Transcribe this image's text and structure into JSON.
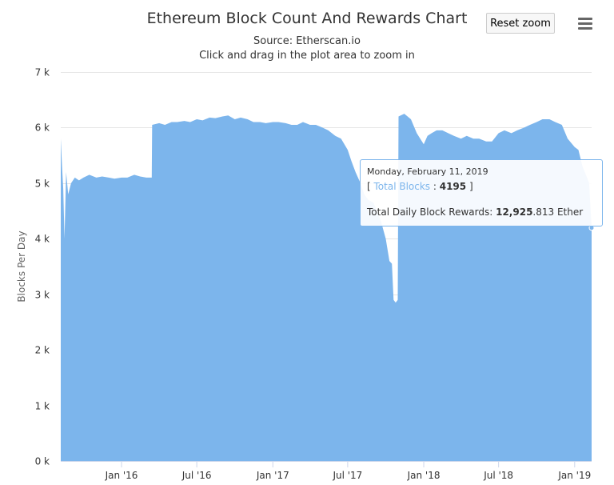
{
  "header": {
    "title": "Ethereum Block Count And Rewards Chart",
    "subtitle": "Source: Etherscan.io",
    "instruction": "Click and drag in the plot area to zoom in",
    "reset_zoom_label": "Reset zoom",
    "menu_icon": "hamburger-menu-icon"
  },
  "colors": {
    "series": "#7cb5ec",
    "gridline": "#e6e6e6",
    "axis_text": "#333333"
  },
  "chart_data": {
    "type": "area",
    "title": "Ethereum Block Count And Rewards Chart",
    "subtitle": "Source: Etherscan.io",
    "xlabel": "",
    "ylabel": "Blocks Per Day",
    "ylim": [
      0,
      7000
    ],
    "xlim": [
      "2015-08-07",
      "2019-02-11"
    ],
    "yticks": [
      {
        "value": 0,
        "label": "0 k"
      },
      {
        "value": 1000,
        "label": "1 k"
      },
      {
        "value": 2000,
        "label": "2 k"
      },
      {
        "value": 3000,
        "label": "3 k"
      },
      {
        "value": 4000,
        "label": "4 k"
      },
      {
        "value": 5000,
        "label": "5 k"
      },
      {
        "value": 6000,
        "label": "6 k"
      },
      {
        "value": 7000,
        "label": "7 k"
      }
    ],
    "xticks": [
      {
        "value": "2016-01-01",
        "label": "Jan '16"
      },
      {
        "value": "2016-07-01",
        "label": "Jul '16"
      },
      {
        "value": "2017-01-01",
        "label": "Jan '17"
      },
      {
        "value": "2017-07-01",
        "label": "Jul '17"
      },
      {
        "value": "2018-01-01",
        "label": "Jan '18"
      },
      {
        "value": "2018-07-01",
        "label": "Jul '18"
      },
      {
        "value": "2019-01-01",
        "label": "Jan '19"
      }
    ],
    "grid": true,
    "legend": false,
    "series": [
      {
        "x": [
          "2015-08-07",
          "2015-08-10",
          "2015-08-13",
          "2015-08-16",
          "2015-08-20",
          "2015-08-25",
          "2015-09-01",
          "2015-09-10",
          "2015-09-20",
          "2015-10-01",
          "2015-10-15",
          "2015-11-01",
          "2015-11-15",
          "2015-12-01",
          "2015-12-15",
          "2016-01-01",
          "2016-01-15",
          "2016-02-01",
          "2016-02-15",
          "2016-03-01",
          "2016-03-14",
          "2016-03-15",
          "2016-04-01",
          "2016-04-15",
          "2016-05-01",
          "2016-05-15",
          "2016-06-01",
          "2016-06-15",
          "2016-07-01",
          "2016-07-15",
          "2016-08-01",
          "2016-08-15",
          "2016-09-01",
          "2016-09-15",
          "2016-10-01",
          "2016-10-15",
          "2016-11-01",
          "2016-11-15",
          "2016-12-01",
          "2016-12-15",
          "2017-01-01",
          "2017-01-15",
          "2017-02-01",
          "2017-02-15",
          "2017-03-01",
          "2017-03-15",
          "2017-04-01",
          "2017-04-15",
          "2017-05-01",
          "2017-05-15",
          "2017-06-01",
          "2017-06-15",
          "2017-07-01",
          "2017-07-10",
          "2017-07-20",
          "2017-08-01",
          "2017-08-10",
          "2017-08-20",
          "2017-09-01",
          "2017-09-10",
          "2017-09-20",
          "2017-10-01",
          "2017-10-10",
          "2017-10-16",
          "2017-10-20",
          "2017-10-25",
          "2017-10-30",
          "2017-11-01",
          "2017-11-15",
          "2017-12-01",
          "2017-12-15",
          "2018-01-01",
          "2018-01-10",
          "2018-01-20",
          "2018-02-01",
          "2018-02-15",
          "2018-03-01",
          "2018-03-15",
          "2018-04-01",
          "2018-04-15",
          "2018-05-01",
          "2018-05-15",
          "2018-06-01",
          "2018-06-15",
          "2018-07-01",
          "2018-07-15",
          "2018-08-01",
          "2018-08-15",
          "2018-09-01",
          "2018-09-15",
          "2018-10-01",
          "2018-10-15",
          "2018-11-01",
          "2018-11-15",
          "2018-12-01",
          "2018-12-15",
          "2019-01-01",
          "2019-01-10",
          "2019-01-20",
          "2019-01-31",
          "2019-02-05",
          "2019-02-11"
        ],
        "y": [
          5800,
          5300,
          4900,
          4000,
          5200,
          4800,
          5000,
          5100,
          5050,
          5100,
          5150,
          5100,
          5120,
          5100,
          5080,
          5100,
          5100,
          5150,
          5120,
          5100,
          5100,
          6050,
          6080,
          6050,
          6100,
          6100,
          6120,
          6100,
          6150,
          6130,
          6180,
          6170,
          6200,
          6220,
          6150,
          6180,
          6150,
          6100,
          6100,
          6080,
          6100,
          6100,
          6080,
          6050,
          6050,
          6100,
          6050,
          6050,
          6000,
          5950,
          5850,
          5800,
          5600,
          5400,
          5200,
          5000,
          4800,
          4700,
          4650,
          4500,
          4300,
          4000,
          3600,
          3550,
          2900,
          2850,
          2900,
          6200,
          6250,
          6150,
          5900,
          5700,
          5850,
          5900,
          5950,
          5950,
          5900,
          5850,
          5800,
          5850,
          5800,
          5800,
          5750,
          5750,
          5900,
          5950,
          5900,
          5950,
          6000,
          6050,
          6100,
          6150,
          6150,
          6100,
          6050,
          5800,
          5650,
          5600,
          5300,
          5100,
          5000,
          4195
        ]
      }
    ],
    "tooltip": {
      "date": "Monday, February 11, 2019",
      "series_label": "Total Blocks",
      "series_value": "4195",
      "rewards_label": "Total Daily Block Rewards:",
      "rewards_value_bold": "12,925",
      "rewards_value_rest": ".813 Ether"
    }
  }
}
